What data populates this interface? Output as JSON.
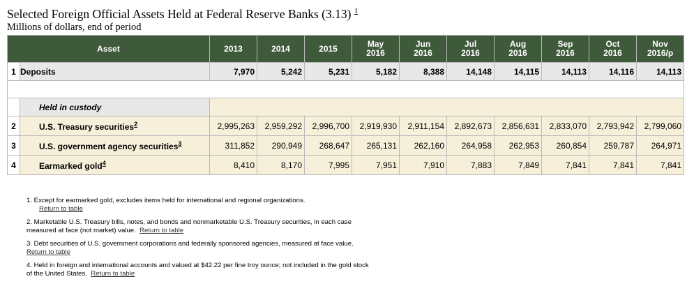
{
  "title": "Selected Foreign Official Assets Held at Federal Reserve Banks (3.13)",
  "title_note": "1",
  "subtitle": "Millions of dollars, end of period",
  "columns": [
    {
      "l1": "2013",
      "l2": ""
    },
    {
      "l1": "2014",
      "l2": ""
    },
    {
      "l1": "2015",
      "l2": ""
    },
    {
      "l1": "May",
      "l2": "2016"
    },
    {
      "l1": "Jun",
      "l2": "2016"
    },
    {
      "l1": "Jul",
      "l2": "2016"
    },
    {
      "l1": "Aug",
      "l2": "2016"
    },
    {
      "l1": "Sep",
      "l2": "2016"
    },
    {
      "l1": "Oct",
      "l2": "2016"
    },
    {
      "l1": "Nov",
      "l2": "2016/p"
    }
  ],
  "asset_header": "Asset",
  "deposits": {
    "idx": "1",
    "label": "Deposits",
    "values": [
      "7,970",
      "5,242",
      "5,231",
      "5,182",
      "8,388",
      "14,148",
      "14,115",
      "14,113",
      "14,116",
      "14,113"
    ]
  },
  "custody_label": "Held in custody",
  "rows": [
    {
      "idx": "2",
      "label": "U.S. Treasury securities",
      "note": "2",
      "values": [
        "2,995,263",
        "2,959,292",
        "2,996,700",
        "2,919,930",
        "2,911,154",
        "2,892,673",
        "2,856,631",
        "2,833,070",
        "2,793,942",
        "2,799,060"
      ]
    },
    {
      "idx": "3",
      "label": "U.S. government agency securities",
      "note": "3",
      "values": [
        "311,852",
        "290,949",
        "268,647",
        "265,131",
        "262,160",
        "264,958",
        "262,953",
        "260,854",
        "259,787",
        "264,971"
      ]
    },
    {
      "idx": "4",
      "label": "Earmarked gold",
      "note": "4",
      "values": [
        "8,410",
        "8,170",
        "7,995",
        "7,951",
        "7,910",
        "7,883",
        "7,849",
        "7,841",
        "7,841",
        "7,841"
      ]
    }
  ],
  "notes": [
    {
      "text": "1. Except for earmarked gold, excludes items held for international and regional organizations.",
      "link": "Return to table",
      "link_newline": true
    },
    {
      "text": "2. Marketable U.S. Treasury bills, notes, and bonds and nonmarketable U.S. Treasury securities, in each case measured at face (not market) value.",
      "link": "Return to table",
      "link_newline": false
    },
    {
      "text": "3. Debt securities of U.S. government corporations and federally sponsored agencies, measured at face value.",
      "link": "Return to table",
      "link_newline": false
    },
    {
      "text": "4. Held in foreign and international accounts and valued at $42.22 per fine troy ounce; not included in the gold stock of the United States.",
      "link": "Return to table",
      "link_newline": false
    }
  ]
}
